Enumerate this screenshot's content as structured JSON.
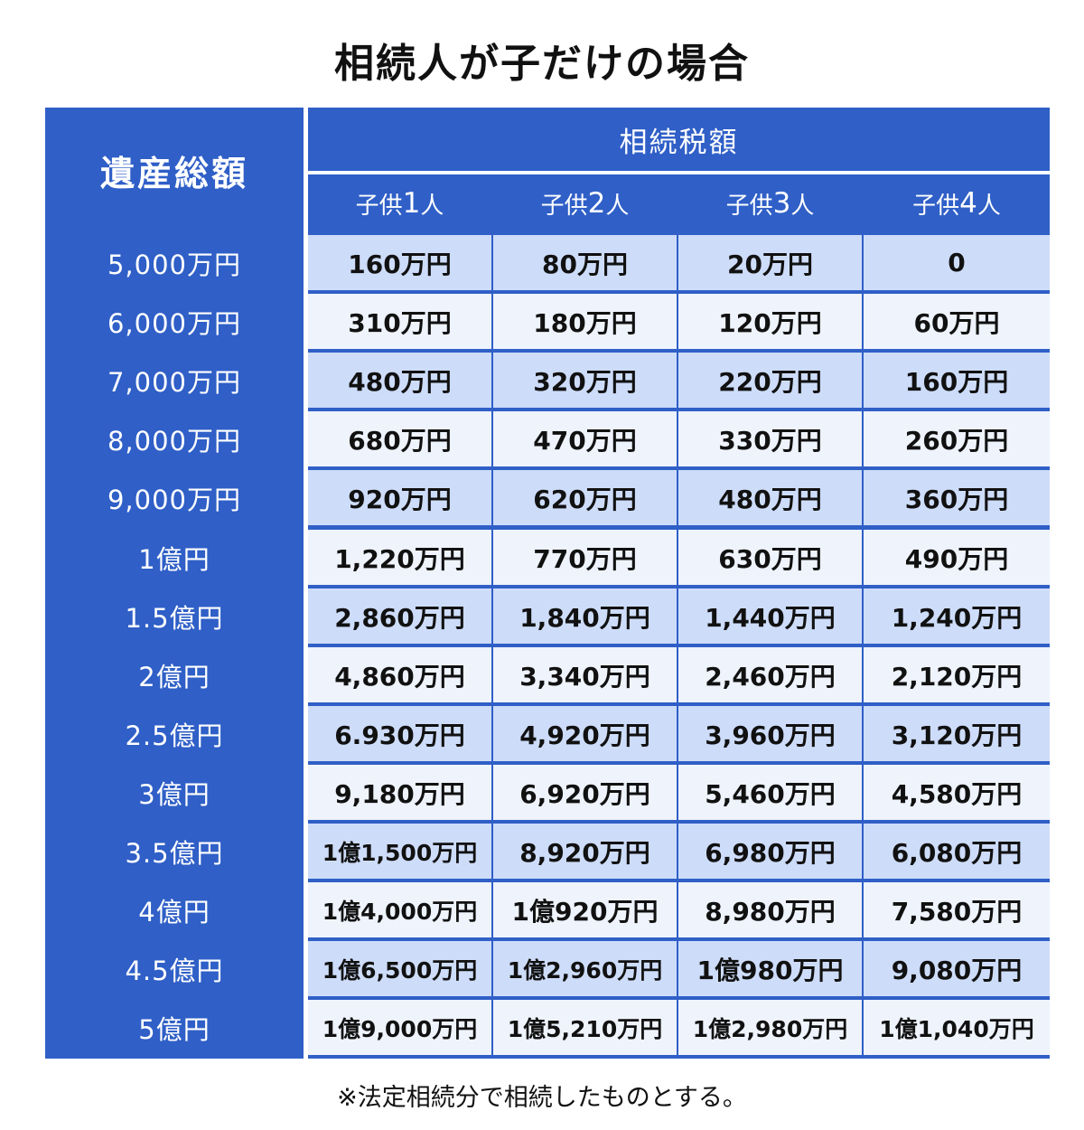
{
  "title": "相続人が子だけの場合",
  "table": {
    "corner_label": "遺産総額",
    "group_label": "相続税額",
    "columns": [
      {
        "prefix": "子供",
        "num": "1",
        "suffix": "人"
      },
      {
        "prefix": "子供",
        "num": "2",
        "suffix": "人"
      },
      {
        "prefix": "子供",
        "num": "3",
        "suffix": "人"
      },
      {
        "prefix": "子供",
        "num": "4",
        "suffix": "人"
      }
    ],
    "rows": [
      {
        "label": "5,000万円",
        "values": [
          "160万円",
          "80万円",
          "20万円",
          "0"
        ]
      },
      {
        "label": "6,000万円",
        "values": [
          "310万円",
          "180万円",
          "120万円",
          "60万円"
        ]
      },
      {
        "label": "7,000万円",
        "values": [
          "480万円",
          "320万円",
          "220万円",
          "160万円"
        ]
      },
      {
        "label": "8,000万円",
        "values": [
          "680万円",
          "470万円",
          "330万円",
          "260万円"
        ]
      },
      {
        "label": "9,000万円",
        "values": [
          "920万円",
          "620万円",
          "480万円",
          "360万円"
        ]
      },
      {
        "label": "1億円",
        "values": [
          "1,220万円",
          "770万円",
          "630万円",
          "490万円"
        ]
      },
      {
        "label": "1.5億円",
        "values": [
          "2,860万円",
          "1,840万円",
          "1,440万円",
          "1,240万円"
        ]
      },
      {
        "label": "2億円",
        "values": [
          "4,860万円",
          "3,340万円",
          "2,460万円",
          "2,120万円"
        ]
      },
      {
        "label": "2.5億円",
        "values": [
          "6.930万円",
          "4,920万円",
          "3,960万円",
          "3,120万円"
        ]
      },
      {
        "label": "3億円",
        "values": [
          "9,180万円",
          "6,920万円",
          "5,460万円",
          "4,580万円"
        ]
      },
      {
        "label": "3.5億円",
        "values": [
          "1億1,500万円",
          "8,920万円",
          "6,980万円",
          "6,080万円"
        ]
      },
      {
        "label": "4億円",
        "values": [
          "1億4,000万円",
          "1億920万円",
          "8,980万円",
          "7,580万円"
        ]
      },
      {
        "label": "4.5億円",
        "values": [
          "1億6,500万円",
          "1億2,960万円",
          "1億980万円",
          "9,080万円"
        ]
      },
      {
        "label": "5億円",
        "values": [
          "1億9,000万円",
          "1億5,210万円",
          "1億2,980万円",
          "1億1,040万円"
        ]
      }
    ]
  },
  "note": "※法定相続分で相続したものとする。",
  "colors": {
    "header_blue": "#2f5fc7",
    "row_light_blue": "#cddcf9",
    "row_pale": "#eef3fc"
  }
}
